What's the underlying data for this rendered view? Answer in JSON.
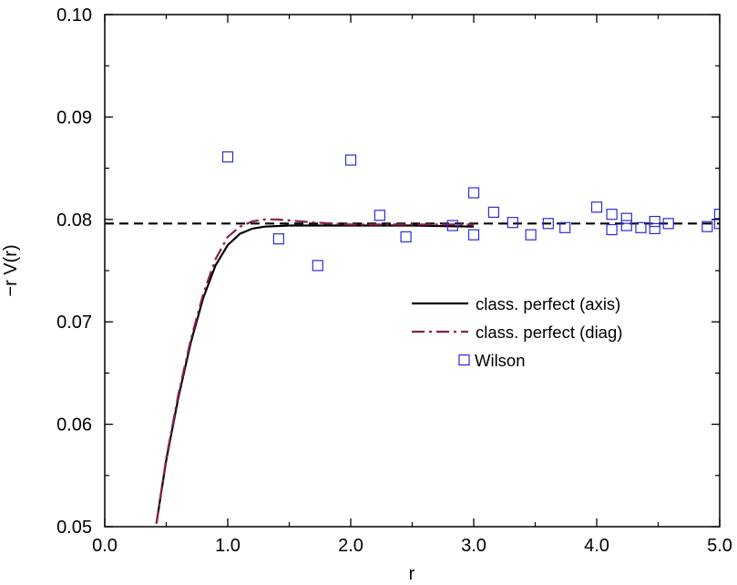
{
  "chart_data": {
    "type": "line",
    "xlabel": "r",
    "ylabel": "−r V(r)",
    "xlim": [
      0.0,
      5.0
    ],
    "ylim": [
      0.05,
      0.1
    ],
    "xticks": [
      0.0,
      1.0,
      2.0,
      3.0,
      4.0,
      5.0
    ],
    "xtick_labels": [
      "0.0",
      "1.0",
      "2.0",
      "3.0",
      "4.0",
      "5.0"
    ],
    "yticks": [
      0.05,
      0.06,
      0.07,
      0.08,
      0.09,
      0.1
    ],
    "ytick_labels": [
      "0.05",
      "0.06",
      "0.07",
      "0.08",
      "0.09",
      "0.10"
    ],
    "grid": false,
    "legend_position": "center-right",
    "reference_line": {
      "y": 0.0796,
      "style": "dashed",
      "color": "#000000"
    },
    "series": [
      {
        "name": "class. perfect (axis)",
        "style": "solid",
        "color": "#000000",
        "x": [
          0.42,
          0.5,
          0.6,
          0.7,
          0.8,
          0.9,
          1.0,
          1.1,
          1.2,
          1.3,
          1.5,
          2.0,
          2.5,
          3.0
        ],
        "y": [
          0.0503,
          0.0565,
          0.0627,
          0.068,
          0.0723,
          0.0755,
          0.0775,
          0.0786,
          0.0791,
          0.0793,
          0.0794,
          0.0794,
          0.0794,
          0.0793
        ]
      },
      {
        "name": "class. perfect (diag)",
        "style": "dashdot",
        "color": "#8b1c4e",
        "x": [
          0.42,
          0.5,
          0.6,
          0.7,
          0.8,
          0.9,
          1.0,
          1.1,
          1.2,
          1.3,
          1.4,
          1.5,
          1.7,
          2.0,
          2.5,
          3.0
        ],
        "y": [
          0.0503,
          0.0567,
          0.063,
          0.0683,
          0.0727,
          0.0761,
          0.0783,
          0.0793,
          0.0798,
          0.08,
          0.08,
          0.0799,
          0.0797,
          0.0795,
          0.0795,
          0.0795
        ]
      },
      {
        "name": "Wilson",
        "style": "marker-square",
        "color": "#2b2bd6",
        "x": [
          1.0,
          1.414,
          1.732,
          2.0,
          2.236,
          2.449,
          2.828,
          3.0,
          3.0,
          3.162,
          3.317,
          3.464,
          3.606,
          3.742,
          4.0,
          4.123,
          4.123,
          4.243,
          4.243,
          4.359,
          4.472,
          4.472,
          4.583,
          4.899,
          5.0,
          5.0
        ],
        "y": [
          0.0861,
          0.0781,
          0.0755,
          0.0858,
          0.0804,
          0.0783,
          0.0794,
          0.0826,
          0.0785,
          0.0807,
          0.0797,
          0.0785,
          0.0796,
          0.0792,
          0.0812,
          0.0805,
          0.079,
          0.0801,
          0.0794,
          0.0792,
          0.0798,
          0.0791,
          0.0796,
          0.0793,
          0.0805,
          0.0796
        ]
      }
    ]
  }
}
